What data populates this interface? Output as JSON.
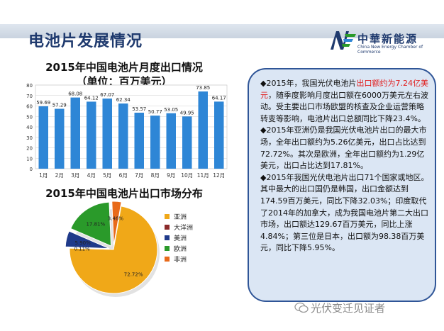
{
  "header": {
    "title": "电池片发展情况",
    "logo_cn": "中華新能源",
    "logo_en": "China New Energy Chamber of Commerce"
  },
  "colors": {
    "bar": "#2e86d6",
    "title": "#1f3a6e",
    "box_border": "#2f5597",
    "box_bg": "#dbe6f4",
    "highlight": "#e11b1b"
  },
  "chart_data": [
    {
      "type": "bar",
      "title": "2015年中国电池片月度出口情况",
      "subtitle": "（单位：百万美元）",
      "categories": [
        "1月",
        "2月",
        "3月",
        "4月",
        "5月",
        "6月",
        "7月",
        "8月",
        "9月",
        "10月",
        "11月",
        "12月"
      ],
      "values": [
        59.69,
        57.29,
        68.08,
        64.12,
        67.07,
        62.34,
        53.57,
        50.77,
        53.05,
        49.95,
        73.85,
        64.17
      ],
      "value_labels": [
        "59.69",
        "57.29",
        "68.08",
        "64.12",
        "67.07",
        "62.34",
        "53.57",
        "50.77",
        "53.05",
        "49.95",
        "73.85",
        "64.17"
      ],
      "ylim": [
        0,
        80
      ],
      "yticks": [
        "0",
        "10",
        "20",
        "30",
        "40",
        "50",
        "60",
        "70",
        "80"
      ],
      "grid": true
    },
    {
      "type": "pie",
      "title": "2015年中国电池片出口市场分布",
      "categories": [
        "亚洲",
        "大洋洲",
        "美洲",
        "欧洲",
        "非洲"
      ],
      "values": [
        72.72,
        0.11,
        5.9,
        17.81,
        3.46
      ],
      "value_labels": [
        "72.72%",
        "0.11%",
        "5.90%",
        "17.81%",
        "3.46%"
      ],
      "colors": [
        "#f0a818",
        "#8b2a2a",
        "#1f3a8a",
        "#2a9a2a",
        "#e86a1a"
      ],
      "legend": "right"
    }
  ],
  "textbox": {
    "p1_a": "◆2015年，我国光伏电池片",
    "p1_hl": "出口额约为7.24亿美元",
    "p1_b": "，随季度影响月度出口额在6000万美元左右波动。受主要出口市场欧盟的核查及企业运营策略转变等影响，电池片出口总额同比下降23.4%。",
    "p2": "◆2015年亚洲仍是我国光伏电池片出口的最大市场，全年出口额约为5.26亿美元，出口占比达到72.72%。其次是欧洲，全年出口额约为1.29亿美元，出口占比达到17.81%。",
    "p3": "◆2015年我国光伏电池片出口71个国家或地区。其中最大的出口国仍是韩国，出口金额达到174.59百万美元，同比下降32.03%；印度取代了2014年的加拿大，成为我国电池片第二大出口市场，出口额达129.67百万美元，同比上涨4.84%；第三位是日本，出口额为98.38百万美元，同比下降5.95%。"
  },
  "watermark": "光伏变迁见证者"
}
